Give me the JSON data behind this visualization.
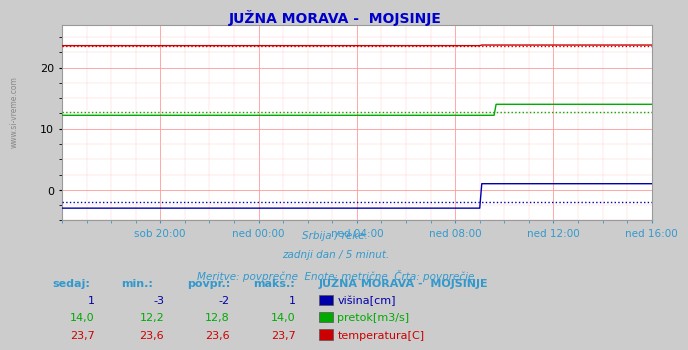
{
  "title": "JUŽNA MORAVA -  MOJSINJE",
  "title_color": "#0000cc",
  "bg_color": "#cccccc",
  "plot_bg_color": "#ffffff",
  "grid_color_major": "#ff9999",
  "grid_color_minor": "#ffcccc",
  "xlabel_color": "#3399cc",
  "text_color": "#3399cc",
  "ylim": [
    -5,
    27
  ],
  "x_labels": [
    "sob 20:00",
    "ned 00:00",
    "ned 04:00",
    "ned 08:00",
    "ned 12:00",
    "ned 16:00"
  ],
  "n_points": 289,
  "visina_before": -3,
  "visina_after": 1,
  "visina_step_index": 205,
  "visina_avg": -2,
  "pretok_before": 12.2,
  "pretok_after": 14.0,
  "pretok_step_index": 212,
  "pretok_avg": 12.8,
  "temp_before": 23.6,
  "temp_after": 23.7,
  "temp_step_index": 205,
  "temp_avg": 23.6,
  "color_visina": "#0000aa",
  "color_pretok": "#00aa00",
  "color_temp": "#cc0000",
  "subtitle1": "Srbija / reke.",
  "subtitle2": "zadnji dan / 5 minut.",
  "subtitle3": "Meritve: povprečne  Enote: metrične  Črta: povprečje",
  "table_headers": [
    "sedaj:",
    "min.:",
    "povpr.:",
    "maks.:"
  ],
  "table_col5_header": "JUŽNA MORAVA -  MOJSINJE",
  "table_rows": [
    [
      "1",
      "-3",
      "-2",
      "1"
    ],
    [
      "14,0",
      "12,2",
      "12,8",
      "14,0"
    ],
    [
      "23,7",
      "23,6",
      "23,6",
      "23,7"
    ]
  ],
  "table_labels": [
    "višina[cm]",
    "pretok[m3/s]",
    "temperatura[C]"
  ],
  "table_colors": [
    "#0000aa",
    "#00aa00",
    "#cc0000"
  ],
  "watermark": "www.si-vreme.com"
}
